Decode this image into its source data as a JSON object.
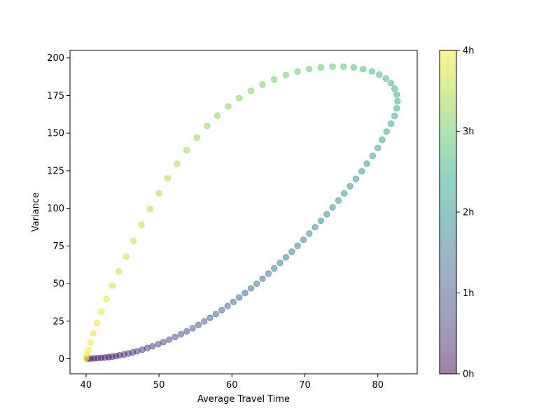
{
  "chart_data": {
    "type": "scatter",
    "xlabel": "Average Travel Time",
    "ylabel": "Variance",
    "xlim": [
      37.8,
      85.4
    ],
    "ylim": [
      -10,
      205
    ],
    "x_ticks": [
      40,
      50,
      60,
      70,
      80
    ],
    "y_ticks": [
      0,
      25,
      50,
      75,
      100,
      125,
      150,
      175,
      200
    ],
    "grid": false,
    "legend": "none",
    "colormap": "viridis",
    "colorbar": {
      "range_hours": [
        0,
        4
      ],
      "ticks": [
        {
          "value": 0,
          "label": "0h"
        },
        {
          "value": 1,
          "label": "1h"
        },
        {
          "value": 2,
          "label": "2h"
        },
        {
          "value": 3,
          "label": "3h"
        },
        {
          "value": 4,
          "label": "4h"
        }
      ]
    },
    "marker_alpha": 0.5,
    "series": [
      {
        "points": [
          {
            "t": 0.0,
            "x": 40.2,
            "y": 0.1
          },
          {
            "t": 0.04,
            "x": 40.6,
            "y": 0.1
          },
          {
            "t": 0.08,
            "x": 41.1,
            "y": 0.2
          },
          {
            "t": 0.12,
            "x": 41.6,
            "y": 0.4
          },
          {
            "t": 0.17,
            "x": 42.1,
            "y": 0.6
          },
          {
            "t": 0.21,
            "x": 42.6,
            "y": 0.8
          },
          {
            "t": 0.25,
            "x": 43.1,
            "y": 1.1
          },
          {
            "t": 0.29,
            "x": 43.6,
            "y": 1.4
          },
          {
            "t": 0.33,
            "x": 44.1,
            "y": 1.8
          },
          {
            "t": 0.37,
            "x": 44.6,
            "y": 2.3
          },
          {
            "t": 0.41,
            "x": 45.2,
            "y": 2.8
          },
          {
            "t": 0.45,
            "x": 45.8,
            "y": 3.5
          },
          {
            "t": 0.49,
            "x": 46.4,
            "y": 4.2
          },
          {
            "t": 0.53,
            "x": 47.0,
            "y": 5.0
          },
          {
            "t": 0.57,
            "x": 47.7,
            "y": 6.0
          },
          {
            "t": 0.61,
            "x": 48.4,
            "y": 7.1
          },
          {
            "t": 0.65,
            "x": 49.1,
            "y": 8.3
          },
          {
            "t": 0.69,
            "x": 49.9,
            "y": 9.7
          },
          {
            "t": 0.73,
            "x": 50.6,
            "y": 11.1
          },
          {
            "t": 0.77,
            "x": 51.4,
            "y": 12.7
          },
          {
            "t": 0.81,
            "x": 52.2,
            "y": 14.4
          },
          {
            "t": 0.85,
            "x": 53.0,
            "y": 16.3
          },
          {
            "t": 0.89,
            "x": 53.8,
            "y": 18.2
          },
          {
            "t": 0.93,
            "x": 54.6,
            "y": 20.3
          },
          {
            "t": 0.97,
            "x": 55.4,
            "y": 22.5
          },
          {
            "t": 1.01,
            "x": 56.2,
            "y": 24.8
          },
          {
            "t": 1.05,
            "x": 57.0,
            "y": 27.2
          },
          {
            "t": 1.09,
            "x": 57.8,
            "y": 29.7
          },
          {
            "t": 1.13,
            "x": 58.6,
            "y": 32.3
          },
          {
            "t": 1.17,
            "x": 59.4,
            "y": 35.0
          },
          {
            "t": 1.21,
            "x": 60.2,
            "y": 37.8
          },
          {
            "t": 1.25,
            "x": 61.0,
            "y": 40.7
          },
          {
            "t": 1.29,
            "x": 61.8,
            "y": 43.7
          },
          {
            "t": 1.33,
            "x": 62.6,
            "y": 46.8
          },
          {
            "t": 1.37,
            "x": 63.4,
            "y": 49.9
          },
          {
            "t": 1.41,
            "x": 64.2,
            "y": 53.2
          },
          {
            "t": 1.45,
            "x": 65.0,
            "y": 56.6
          },
          {
            "t": 1.49,
            "x": 65.8,
            "y": 60.1
          },
          {
            "t": 1.53,
            "x": 66.6,
            "y": 63.7
          },
          {
            "t": 1.57,
            "x": 67.4,
            "y": 67.4
          },
          {
            "t": 1.61,
            "x": 68.2,
            "y": 71.2
          },
          {
            "t": 1.65,
            "x": 69.0,
            "y": 75.1
          },
          {
            "t": 1.69,
            "x": 69.8,
            "y": 79.1
          },
          {
            "t": 1.73,
            "x": 70.6,
            "y": 83.2
          },
          {
            "t": 1.77,
            "x": 71.4,
            "y": 87.4
          },
          {
            "t": 1.81,
            "x": 72.2,
            "y": 91.7
          },
          {
            "t": 1.85,
            "x": 73.0,
            "y": 96.1
          },
          {
            "t": 1.89,
            "x": 73.8,
            "y": 100.6
          },
          {
            "t": 1.93,
            "x": 74.6,
            "y": 105.2
          },
          {
            "t": 1.97,
            "x": 75.4,
            "y": 109.9
          },
          {
            "t": 2.01,
            "x": 76.2,
            "y": 114.7
          },
          {
            "t": 2.05,
            "x": 77.0,
            "y": 119.6
          },
          {
            "t": 2.09,
            "x": 77.8,
            "y": 124.6
          },
          {
            "t": 2.13,
            "x": 78.5,
            "y": 129.7
          },
          {
            "t": 2.17,
            "x": 79.3,
            "y": 134.9
          },
          {
            "t": 2.21,
            "x": 80.0,
            "y": 140.2
          },
          {
            "t": 2.25,
            "x": 80.6,
            "y": 145.6
          },
          {
            "t": 2.29,
            "x": 81.2,
            "y": 151.0
          },
          {
            "t": 2.33,
            "x": 81.8,
            "y": 156.3
          },
          {
            "t": 2.37,
            "x": 82.3,
            "y": 161.5
          },
          {
            "t": 2.41,
            "x": 82.6,
            "y": 166.5
          },
          {
            "t": 2.45,
            "x": 82.7,
            "y": 171.2
          },
          {
            "t": 2.49,
            "x": 82.6,
            "y": 175.6
          },
          {
            "t": 2.53,
            "x": 82.3,
            "y": 179.6
          },
          {
            "t": 2.57,
            "x": 81.8,
            "y": 183.2
          },
          {
            "t": 2.61,
            "x": 81.1,
            "y": 186.3
          },
          {
            "t": 2.65,
            "x": 80.2,
            "y": 188.9
          },
          {
            "t": 2.69,
            "x": 79.2,
            "y": 191.0
          },
          {
            "t": 2.73,
            "x": 78.0,
            "y": 192.6
          },
          {
            "t": 2.77,
            "x": 76.7,
            "y": 193.7
          },
          {
            "t": 2.81,
            "x": 75.3,
            "y": 194.2
          },
          {
            "t": 2.85,
            "x": 73.8,
            "y": 194.2
          },
          {
            "t": 2.89,
            "x": 72.2,
            "y": 193.7
          },
          {
            "t": 2.93,
            "x": 70.6,
            "y": 192.6
          },
          {
            "t": 2.97,
            "x": 69.0,
            "y": 190.9
          },
          {
            "t": 3.01,
            "x": 67.4,
            "y": 188.6
          },
          {
            "t": 3.05,
            "x": 65.8,
            "y": 185.7
          },
          {
            "t": 3.09,
            "x": 64.2,
            "y": 182.2
          },
          {
            "t": 3.13,
            "x": 62.6,
            "y": 178.1
          },
          {
            "t": 3.17,
            "x": 61.0,
            "y": 173.3
          },
          {
            "t": 3.21,
            "x": 59.5,
            "y": 167.8
          },
          {
            "t": 3.25,
            "x": 58.0,
            "y": 161.6
          },
          {
            "t": 3.29,
            "x": 56.6,
            "y": 154.7
          },
          {
            "t": 3.33,
            "x": 55.2,
            "y": 147.0
          },
          {
            "t": 3.37,
            "x": 53.8,
            "y": 138.6
          },
          {
            "t": 3.41,
            "x": 52.5,
            "y": 129.6
          },
          {
            "t": 3.45,
            "x": 51.2,
            "y": 120.0
          },
          {
            "t": 3.49,
            "x": 50.0,
            "y": 110.0
          },
          {
            "t": 3.53,
            "x": 48.8,
            "y": 99.6
          },
          {
            "t": 3.57,
            "x": 47.6,
            "y": 89.0
          },
          {
            "t": 3.61,
            "x": 46.5,
            "y": 78.4
          },
          {
            "t": 3.65,
            "x": 45.5,
            "y": 68.0
          },
          {
            "t": 3.69,
            "x": 44.5,
            "y": 58.0
          },
          {
            "t": 3.73,
            "x": 43.6,
            "y": 48.5
          },
          {
            "t": 3.77,
            "x": 42.8,
            "y": 39.6
          },
          {
            "t": 3.81,
            "x": 42.1,
            "y": 31.3
          },
          {
            "t": 3.85,
            "x": 41.5,
            "y": 23.7
          },
          {
            "t": 3.89,
            "x": 41.0,
            "y": 16.9
          },
          {
            "t": 3.93,
            "x": 40.6,
            "y": 10.8
          },
          {
            "t": 3.96,
            "x": 40.3,
            "y": 5.7
          },
          {
            "t": 3.98,
            "x": 40.1,
            "y": 2.4
          },
          {
            "t": 4.0,
            "x": 40.0,
            "y": 0.3
          }
        ]
      }
    ]
  }
}
